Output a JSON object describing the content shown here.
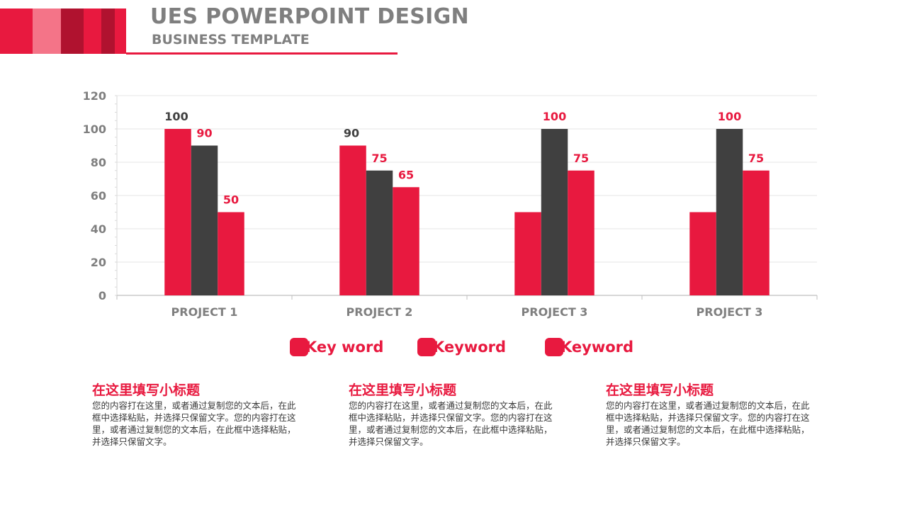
{
  "header": {
    "title": "UES POWERPOINT DESIGN",
    "subtitle": "BUSINESS TEMPLATE"
  },
  "colors": {
    "accent": "#e8193f",
    "accent_light": "#f47488",
    "accent_dark": "#b0122f",
    "dark": "#404040",
    "axis_text": "#7f7f7f",
    "grid": "#e6e6e6"
  },
  "chart_data": {
    "type": "bar",
    "categories": [
      "PROJECT 1",
      "PROJECT 2",
      "PROJECT 3",
      "PROJECT 3"
    ],
    "series": [
      {
        "name": "Key word",
        "color": "#e8193f",
        "values": [
          100,
          90,
          50,
          50
        ]
      },
      {
        "name": "Keyword",
        "color": "#404040",
        "values": [
          90,
          75,
          100,
          100
        ]
      },
      {
        "name": "Keyword",
        "color": "#e8193f",
        "values": [
          50,
          65,
          75,
          75
        ]
      }
    ],
    "data_labels": [
      {
        "category": 0,
        "series": 0,
        "text": "100",
        "color": "#404040"
      },
      {
        "category": 0,
        "series": 1,
        "text": "90",
        "color": "#e8193f"
      },
      {
        "category": 0,
        "series": 2,
        "text": "50",
        "color": "#e8193f"
      },
      {
        "category": 1,
        "series": 0,
        "text": "90",
        "color": "#404040"
      },
      {
        "category": 1,
        "series": 1,
        "text": "75",
        "color": "#e8193f"
      },
      {
        "category": 1,
        "series": 2,
        "text": "65",
        "color": "#e8193f"
      },
      {
        "category": 2,
        "series": 1,
        "text": "100",
        "color": "#e8193f"
      },
      {
        "category": 2,
        "series": 2,
        "text": "75",
        "color": "#e8193f"
      },
      {
        "category": 3,
        "series": 1,
        "text": "100",
        "color": "#e8193f"
      },
      {
        "category": 3,
        "series": 2,
        "text": "75",
        "color": "#e8193f"
      }
    ],
    "ylim": [
      0,
      120
    ],
    "yticks": [
      0,
      20,
      40,
      60,
      80,
      100,
      120
    ],
    "grid": true,
    "legend_position": "bottom",
    "title": "",
    "xlabel": "",
    "ylabel": ""
  },
  "blocks": [
    {
      "title": "在这里填写小标题",
      "text": "您的内容打在这里，或者通过复制您的文本后，在此框中选择粘贴，并选择只保留文字。您的内容打在这里，或者通过复制您的文本后，在此框中选择粘贴，并选择只保留文字。"
    },
    {
      "title": "在这里填写小标题",
      "text": "您的内容打在这里，或者通过复制您的文本后，在此框中选择粘贴，并选择只保留文字。您的内容打在这里，或者通过复制您的文本后，在此框中选择粘贴，并选择只保留文字。"
    },
    {
      "title": "在这里填写小标题",
      "text": "您的内容打在这里，或者通过复制您的文本后，在此框中选择粘贴，并选择只保留文字。您的内容打在这里，或者通过复制您的文本后，在此框中选择粘贴，并选择只保留文字。"
    }
  ]
}
